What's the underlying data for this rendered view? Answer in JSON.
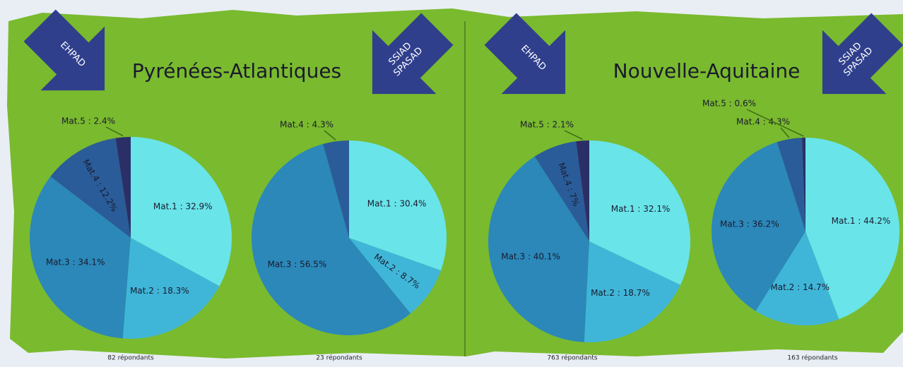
{
  "panels": [
    {
      "title": "Pyrénées-Atlantiques"
    },
    {
      "title": "Nouvelle-Aquitaine"
    }
  ],
  "chart_data": [
    {
      "type": "pie",
      "annotations": [
        "EHPAD"
      ],
      "note": "82 répondants",
      "values": [
        32.9,
        18.3,
        34.1,
        12.2,
        2.4
      ],
      "value_labels": [
        "Mat.1 : 32.9%",
        "Mat.2 : 18.3%",
        "Mat.3 : 34.1%",
        "Mat.4 : 12.2%",
        "Mat.5 : 2.4%"
      ],
      "colors": [
        "#69e4e9",
        "#3fb6d8",
        "#2b88b9",
        "#2a5c99",
        "#2b2f68"
      ]
    },
    {
      "type": "pie",
      "annotations": [
        "SSIAD",
        "SPASAD"
      ],
      "note": "23 répondants",
      "values": [
        30.4,
        8.7,
        56.5,
        4.3
      ],
      "value_labels": [
        "Mat.1 : 30.4%",
        "Mat.2 : 8.7%",
        "Mat.3 : 56.5%",
        "Mat.4 : 4.3%"
      ],
      "colors": [
        "#69e4e9",
        "#3fb6d8",
        "#2b88b9",
        "#2a5c99"
      ]
    },
    {
      "type": "pie",
      "annotations": [
        "EHPAD"
      ],
      "note": "763 répondants",
      "values": [
        32.1,
        18.7,
        40.1,
        7,
        2.1
      ],
      "value_labels": [
        "Mat.1 : 32.1%",
        "Mat.2 : 18.7%",
        "Mat.3 : 40.1%",
        "Mat.4 : 7%",
        "Mat.5 : 2.1%"
      ],
      "colors": [
        "#69e4e9",
        "#3fb6d8",
        "#2b88b9",
        "#2a5c99",
        "#2b2f68"
      ]
    },
    {
      "type": "pie",
      "annotations": [
        "SSIAD",
        "SPASAD"
      ],
      "note": "163 répondants",
      "values": [
        44.2,
        14.7,
        36.2,
        4.3,
        0.6
      ],
      "value_labels": [
        "Mat.1 : 44.2%",
        "Mat.2 : 14.7%",
        "Mat.3 : 36.2%",
        "Mat.4 : 4.3%",
        "Mat.5 : 0.6%"
      ],
      "colors": [
        "#69e4e9",
        "#3fb6d8",
        "#2b88b9",
        "#2a5c99",
        "#2b2f68"
      ]
    }
  ]
}
